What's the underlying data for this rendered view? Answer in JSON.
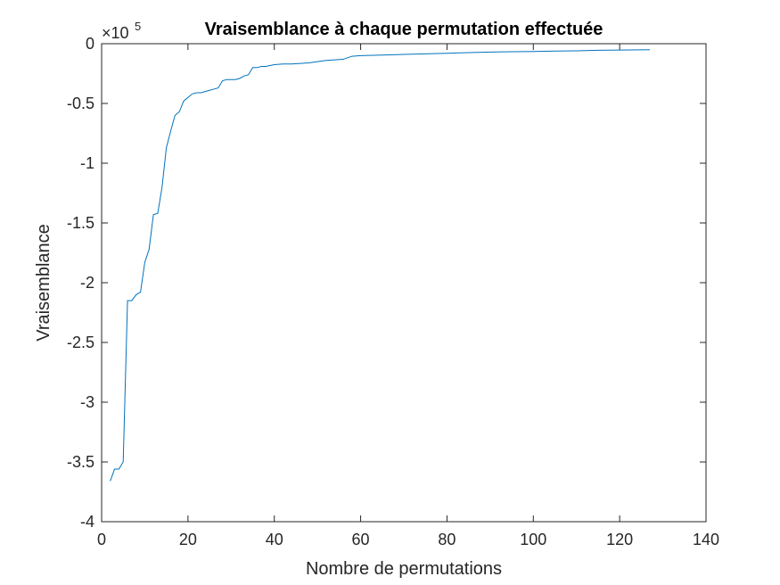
{
  "chart_data": {
    "type": "line",
    "title": "Vraisemblance à chaque permutation effectuée",
    "xlabel": "Nombre de permutations",
    "ylabel": "Vraisemblance",
    "y_exponent": {
      "base": "×10",
      "power": "5"
    },
    "xlim": [
      0,
      140
    ],
    "ylim": [
      -400000,
      0
    ],
    "x_ticks": [
      0,
      20,
      40,
      60,
      80,
      100,
      120,
      140
    ],
    "x_tick_labels": [
      "0",
      "20",
      "40",
      "60",
      "80",
      "100",
      "120",
      "140"
    ],
    "y_ticks": [
      0,
      -50000,
      -100000,
      -150000,
      -200000,
      -250000,
      -300000,
      -350000,
      -400000
    ],
    "y_tick_labels": [
      "0",
      "-0.5",
      "-1",
      "-1.5",
      "-2",
      "-2.5",
      "-3",
      "-3.5",
      "-4"
    ],
    "grid": false,
    "legend": "none",
    "series": [
      {
        "color": "#0072BD",
        "x": [
          2,
          3,
          4,
          5,
          6,
          7,
          8,
          9,
          10,
          11,
          12,
          13,
          14,
          15,
          16,
          17,
          18,
          19,
          20,
          21,
          22,
          23,
          24,
          25,
          26,
          27,
          28,
          29,
          30,
          31,
          32,
          33,
          34,
          35,
          36,
          37,
          38,
          40,
          42,
          44,
          46,
          48,
          50,
          52,
          54,
          56,
          58,
          60,
          65,
          70,
          75,
          80,
          85,
          90,
          95,
          100,
          105,
          110,
          115,
          120,
          127
        ],
        "y": [
          -366000,
          -356000,
          -356000,
          -350000,
          -215000,
          -215000,
          -210000,
          -208000,
          -183000,
          -172000,
          -143000,
          -142000,
          -120000,
          -87000,
          -73000,
          -60000,
          -57000,
          -48000,
          -45000,
          -42000,
          -41000,
          -41000,
          -40000,
          -39000,
          -38000,
          -37000,
          -31000,
          -30000,
          -30000,
          -30000,
          -29000,
          -27000,
          -26000,
          -20000,
          -20000,
          -19000,
          -19000,
          -17500,
          -17000,
          -17000,
          -16500,
          -16000,
          -15000,
          -14000,
          -13500,
          -13000,
          -10500,
          -10000,
          -9500,
          -9000,
          -8500,
          -8000,
          -7500,
          -7000,
          -6700,
          -6500,
          -6200,
          -6000,
          -5500,
          -5300,
          -5000
        ]
      }
    ]
  }
}
